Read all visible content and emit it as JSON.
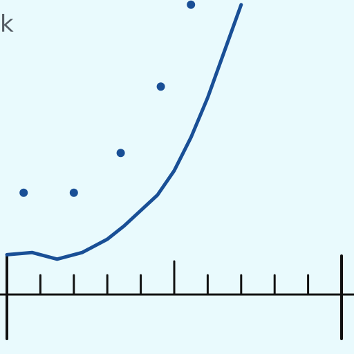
{
  "chart_data": {
    "type": "line",
    "title": "",
    "xlabel": "",
    "ylabel": "",
    "annotation_text": "k",
    "x_axis": {
      "major_ticks": [
        0,
        10
      ],
      "mid_tick": [
        5
      ],
      "minor_ticks": [
        1,
        2,
        3,
        4,
        6,
        7,
        8,
        9
      ]
    },
    "series": [
      {
        "kind": "curve",
        "x": [
          0,
          0.75,
          1.5,
          2.25,
          3,
          3.5,
          4,
          4.5,
          5,
          5.5,
          6,
          6.5,
          7
        ],
        "y": [
          0.36,
          0.38,
          0.32,
          0.38,
          0.5,
          0.62,
          0.76,
          0.9,
          1.12,
          1.42,
          1.78,
          2.2,
          2.62
        ]
      },
      {
        "kind": "points",
        "x": [
          0.5,
          2,
          3.4,
          4.6,
          5.5
        ],
        "y": [
          0.92,
          0.92,
          1.28,
          1.88,
          2.62
        ]
      }
    ],
    "colors": {
      "background": "#e9fafd",
      "series": "#194f96",
      "axis": "#111111",
      "text": "#555c64"
    }
  }
}
